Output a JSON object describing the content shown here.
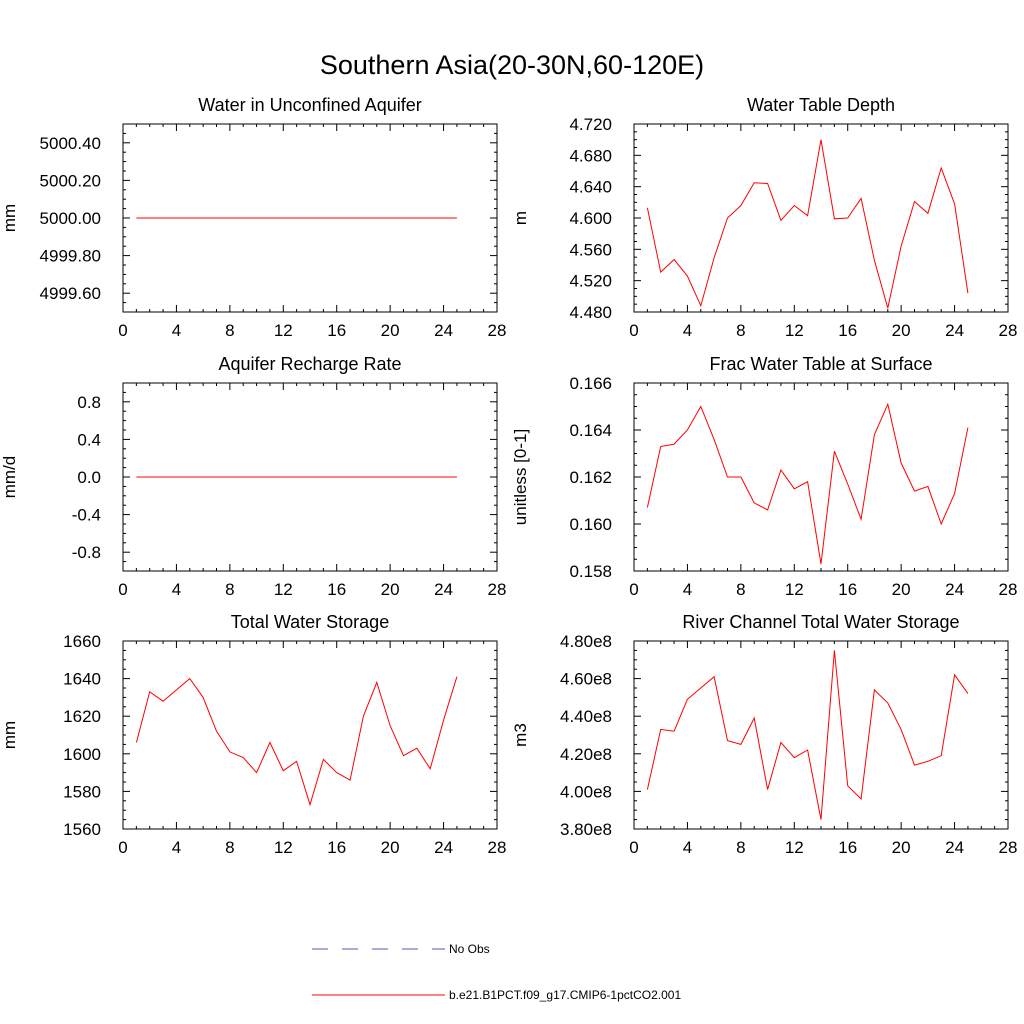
{
  "title": "Southern Asia(20-30N,60-120E)",
  "chart_data": [
    {
      "type": "line",
      "title": "Water in Unconfined Aquifer",
      "ylabel": "mm",
      "xlim": [
        0,
        28
      ],
      "xticks": [
        "0",
        "4",
        "8",
        "12",
        "16",
        "20",
        "24",
        "28"
      ],
      "ylim": [
        4999.5,
        5000.5
      ],
      "yticks": [
        "4999.60",
        "4999.80",
        "5000.00",
        "5000.20",
        "5000.40"
      ],
      "x": [
        1,
        2,
        3,
        4,
        5,
        6,
        7,
        8,
        9,
        10,
        11,
        12,
        13,
        14,
        15,
        16,
        17,
        18,
        19,
        20,
        21,
        22,
        23,
        24,
        25
      ],
      "series": [
        {
          "name": "b.e21.B1PCT.f09_g17.CMIP6-1pctCO2.001",
          "color": "#ff0000",
          "values": [
            5000,
            5000,
            5000,
            5000,
            5000,
            5000,
            5000,
            5000,
            5000,
            5000,
            5000,
            5000,
            5000,
            5000,
            5000,
            5000,
            5000,
            5000,
            5000,
            5000,
            5000,
            5000,
            5000,
            5000,
            5000
          ]
        }
      ]
    },
    {
      "type": "line",
      "title": "Water Table Depth",
      "ylabel": "m",
      "xlim": [
        0,
        28
      ],
      "xticks": [
        "0",
        "4",
        "8",
        "12",
        "16",
        "20",
        "24",
        "28"
      ],
      "ylim": [
        4.48,
        4.72
      ],
      "yticks": [
        "4.480",
        "4.520",
        "4.560",
        "4.600",
        "4.640",
        "4.680",
        "4.720"
      ],
      "x": [
        1,
        2,
        3,
        4,
        5,
        6,
        7,
        8,
        9,
        10,
        11,
        12,
        13,
        14,
        15,
        16,
        17,
        18,
        19,
        20,
        21,
        22,
        23,
        24,
        25
      ],
      "series": [
        {
          "name": "b.e21.B1PCT.f09_g17.CMIP6-1pctCO2.001",
          "color": "#ff0000",
          "values": [
            4.613,
            4.531,
            4.547,
            4.526,
            4.488,
            4.549,
            4.6,
            4.616,
            4.645,
            4.644,
            4.597,
            4.616,
            4.603,
            4.7,
            4.599,
            4.6,
            4.625,
            4.546,
            4.485,
            4.564,
            4.621,
            4.606,
            4.664,
            4.618,
            4.504
          ]
        }
      ]
    },
    {
      "type": "line",
      "title": "Aquifer Recharge Rate",
      "ylabel": "mm/d",
      "xlim": [
        0,
        28
      ],
      "xticks": [
        "0",
        "4",
        "8",
        "12",
        "16",
        "20",
        "24",
        "28"
      ],
      "ylim": [
        -1.0,
        1.0
      ],
      "yticks": [
        "-0.8",
        "-0.4",
        "0.0",
        "0.4",
        "0.8"
      ],
      "x": [
        1,
        2,
        3,
        4,
        5,
        6,
        7,
        8,
        9,
        10,
        11,
        12,
        13,
        14,
        15,
        16,
        17,
        18,
        19,
        20,
        21,
        22,
        23,
        24,
        25
      ],
      "series": [
        {
          "name": "b.e21.B1PCT.f09_g17.CMIP6-1pctCO2.001",
          "color": "#ff0000",
          "values": [
            0,
            0,
            0,
            0,
            0,
            0,
            0,
            0,
            0,
            0,
            0,
            0,
            0,
            0,
            0,
            0,
            0,
            0,
            0,
            0,
            0,
            0,
            0,
            0,
            0
          ]
        }
      ]
    },
    {
      "type": "line",
      "title": "Frac Water Table at Surface",
      "ylabel": "unitless [0-1]",
      "xlim": [
        0,
        28
      ],
      "xticks": [
        "0",
        "4",
        "8",
        "12",
        "16",
        "20",
        "24",
        "28"
      ],
      "ylim": [
        0.158,
        0.166
      ],
      "yticks": [
        "0.158",
        "0.160",
        "0.162",
        "0.164",
        "0.166"
      ],
      "x": [
        1,
        2,
        3,
        4,
        5,
        6,
        7,
        8,
        9,
        10,
        11,
        12,
        13,
        14,
        15,
        16,
        17,
        18,
        19,
        20,
        21,
        22,
        23,
        24,
        25
      ],
      "series": [
        {
          "name": "b.e21.B1PCT.f09_g17.CMIP6-1pctCO2.001",
          "color": "#ff0000",
          "values": [
            0.1607,
            0.1633,
            0.1634,
            0.164,
            0.165,
            0.1636,
            0.162,
            0.162,
            0.1609,
            0.1606,
            0.1623,
            0.1615,
            0.1618,
            0.1583,
            0.1631,
            0.1617,
            0.1602,
            0.1638,
            0.1651,
            0.1626,
            0.1614,
            0.1616,
            0.16,
            0.1613,
            0.1641
          ]
        }
      ]
    },
    {
      "type": "line",
      "title": "Total Water Storage",
      "ylabel": "mm",
      "xlim": [
        0,
        28
      ],
      "xticks": [
        "0",
        "4",
        "8",
        "12",
        "16",
        "20",
        "24",
        "28"
      ],
      "ylim": [
        1560,
        1660
      ],
      "yticks": [
        "1560",
        "1580",
        "1600",
        "1620",
        "1640",
        "1660"
      ],
      "x": [
        1,
        2,
        3,
        4,
        5,
        6,
        7,
        8,
        9,
        10,
        11,
        12,
        13,
        14,
        15,
        16,
        17,
        18,
        19,
        20,
        21,
        22,
        23,
        24,
        25
      ],
      "series": [
        {
          "name": "b.e21.B1PCT.f09_g17.CMIP6-1pctCO2.001",
          "color": "#ff0000",
          "values": [
            1606,
            1633,
            1628,
            1634,
            1640,
            1630,
            1612,
            1601,
            1598,
            1590,
            1606,
            1591,
            1596,
            1573,
            1597,
            1590,
            1586,
            1620,
            1638,
            1615,
            1599,
            1603,
            1592,
            1618,
            1641
          ]
        }
      ]
    },
    {
      "type": "line",
      "title": "River Channel Total Water Storage",
      "ylabel": "m3",
      "xlim": [
        0,
        28
      ],
      "xticks": [
        "0",
        "4",
        "8",
        "12",
        "16",
        "20",
        "24",
        "28"
      ],
      "ylim": [
        380000000.0,
        480000000.0
      ],
      "yticks": [
        "3.80e8",
        "4.00e8",
        "4.20e8",
        "4.40e8",
        "4.60e8",
        "4.80e8"
      ],
      "x": [
        1,
        2,
        3,
        4,
        5,
        6,
        7,
        8,
        9,
        10,
        11,
        12,
        13,
        14,
        15,
        16,
        17,
        18,
        19,
        20,
        21,
        22,
        23,
        24,
        25
      ],
      "series": [
        {
          "name": "b.e21.B1PCT.f09_g17.CMIP6-1pctCO2.001",
          "color": "#ff0000",
          "values": [
            401000000.0,
            433000000.0,
            432000000.0,
            449000000.0,
            455000000.0,
            461000000.0,
            427000000.0,
            425000000.0,
            439000000.0,
            401000000.0,
            426000000.0,
            418000000.0,
            422000000.0,
            385000000.0,
            475000000.0,
            403000000.0,
            396000000.0,
            454000000.0,
            447000000.0,
            433000000.0,
            414000000.0,
            416000000.0,
            419000000.0,
            462000000.0,
            452000000.0
          ]
        }
      ]
    }
  ],
  "legend": {
    "items": [
      {
        "label": "No Obs",
        "color": "#5555aa",
        "style": "dashed"
      },
      {
        "label": "b.e21.B1PCT.f09_g17.CMIP6-1pctCO2.001",
        "color": "#ff0000",
        "style": "solid"
      }
    ]
  }
}
